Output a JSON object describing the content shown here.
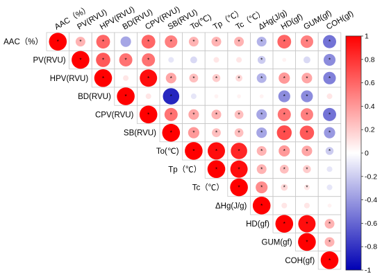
{
  "chart_data": {
    "type": "heatmap",
    "variables": [
      "AAC（%）",
      "PV(RVU)",
      "HPV(RVU)",
      "BD(RVU)",
      "CPV(RVU)",
      "SB(RVU)",
      "To(℃)",
      "Tp（℃）",
      "Tc（℃）",
      "ΔHg(J/g)",
      "HD(gf)",
      "GUM(gf)",
      "COH(gf)"
    ],
    "row_labels": [
      "AAC（%）",
      "PV(RVU)",
      "HPV(RVU)",
      "BD(RVU)",
      "CPV(RVU)",
      "SB(RVU)",
      "To(℃)",
      "Tp（℃）",
      "Tc（℃）",
      "ΔHg(J/g)",
      "HD(gf)",
      "GUM(gf)",
      "COH(gf)"
    ],
    "matrix": [
      [
        1,
        0.3,
        0.6,
        -0.35,
        0.6,
        0.5,
        0.3,
        0.3,
        0.3,
        -0.3,
        0.6,
        0.5,
        -0.55
      ],
      [
        null,
        1,
        0.65,
        0.55,
        0.55,
        -0.1,
        -0.15,
        0.1,
        0.1,
        -0.2,
        0.05,
        -0.15,
        -0.45
      ],
      [
        null,
        null,
        1,
        0.1,
        0.95,
        0.35,
        0.25,
        0.2,
        0.15,
        -0.3,
        0.4,
        0.35,
        -0.5
      ],
      [
        null,
        null,
        null,
        1,
        0.1,
        -0.85,
        -0.1,
        0.05,
        0.05,
        0.05,
        -0.45,
        -0.45,
        0.1
      ],
      [
        null,
        null,
        null,
        null,
        1,
        0.55,
        0.35,
        0.3,
        0.25,
        -0.35,
        0.55,
        0.5,
        -0.55
      ],
      [
        null,
        null,
        null,
        null,
        null,
        1,
        0.4,
        0.25,
        0.25,
        -0.35,
        0.7,
        0.65,
        -0.4
      ],
      [
        null,
        null,
        null,
        null,
        null,
        null,
        1,
        0.95,
        0.85,
        0.3,
        0.4,
        0.35,
        -0.2
      ],
      [
        null,
        null,
        null,
        null,
        null,
        null,
        null,
        1,
        0.95,
        0.3,
        0.25,
        0.2,
        -0.1
      ],
      [
        null,
        null,
        null,
        null,
        null,
        null,
        null,
        null,
        1,
        0.45,
        0.15,
        0.1,
        -0.1
      ],
      [
        null,
        null,
        null,
        null,
        null,
        null,
        null,
        null,
        null,
        1,
        0.1,
        0.1,
        0.05
      ],
      [
        null,
        null,
        null,
        null,
        null,
        null,
        null,
        null,
        null,
        null,
        1,
        0.95,
        0.3
      ],
      [
        null,
        null,
        null,
        null,
        null,
        null,
        null,
        null,
        null,
        null,
        null,
        1,
        0.3
      ],
      [
        null,
        null,
        null,
        null,
        null,
        null,
        null,
        null,
        null,
        null,
        null,
        null,
        1
      ]
    ],
    "significant": [
      [
        true,
        true,
        true,
        false,
        true,
        true,
        true,
        true,
        true,
        true,
        true,
        true,
        true
      ],
      [
        null,
        true,
        true,
        true,
        true,
        false,
        false,
        false,
        false,
        true,
        false,
        false,
        true
      ],
      [
        null,
        null,
        true,
        false,
        true,
        true,
        true,
        true,
        true,
        true,
        true,
        true,
        true
      ],
      [
        null,
        null,
        null,
        true,
        false,
        true,
        false,
        false,
        false,
        false,
        true,
        true,
        false
      ],
      [
        null,
        null,
        null,
        null,
        true,
        true,
        true,
        true,
        true,
        true,
        true,
        true,
        true
      ],
      [
        null,
        null,
        null,
        null,
        null,
        true,
        true,
        true,
        true,
        true,
        true,
        true,
        true
      ],
      [
        null,
        null,
        null,
        null,
        null,
        null,
        true,
        true,
        true,
        true,
        true,
        true,
        true
      ],
      [
        null,
        null,
        null,
        null,
        null,
        null,
        null,
        true,
        true,
        true,
        true,
        true,
        false
      ],
      [
        null,
        null,
        null,
        null,
        null,
        null,
        null,
        null,
        true,
        true,
        true,
        true,
        false
      ],
      [
        null,
        null,
        null,
        null,
        null,
        null,
        null,
        null,
        null,
        true,
        false,
        false,
        false
      ],
      [
        null,
        null,
        null,
        null,
        null,
        null,
        null,
        null,
        null,
        null,
        true,
        true,
        true
      ],
      [
        null,
        null,
        null,
        null,
        null,
        null,
        null,
        null,
        null,
        null,
        null,
        true,
        true
      ],
      [
        null,
        null,
        null,
        null,
        null,
        null,
        null,
        null,
        null,
        null,
        null,
        null,
        true
      ]
    ],
    "colorbar": {
      "min": -1,
      "max": 1,
      "ticks": [
        "1",
        "0.8",
        "0.6",
        "0.4",
        "0.2",
        "0",
        "-0.2",
        "-0.4",
        "-0.6",
        "-0.8",
        "-1"
      ],
      "colors": {
        "negative": "#0000b4",
        "zero": "#ffffff",
        "positive": "#ff0000"
      }
    },
    "significance_marker": "*",
    "grid": true
  }
}
